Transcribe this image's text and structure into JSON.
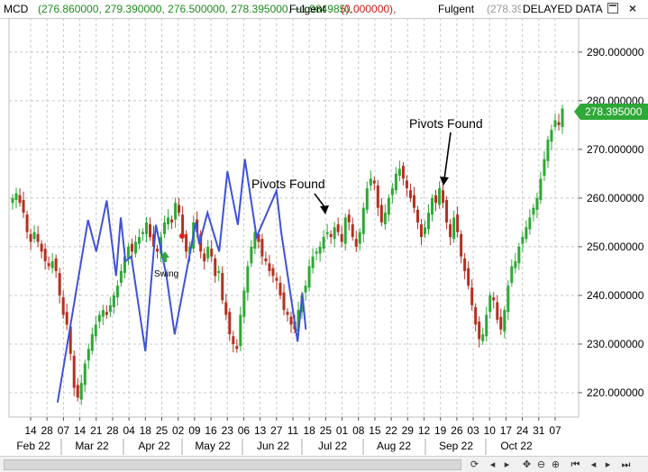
{
  "header": {
    "symbol": "MCD",
    "ohlc": "(276.860000, 279.390000, 276.500000, 278.395000, +1.984985),",
    "indicator1_name": "Fulgent",
    "indicator1_value": "(0.000000),",
    "indicator2_name": "Fulgent",
    "indicator2_value": "(278.39",
    "status": "DELAYED DATA"
  },
  "window_buttons": {
    "maximize_icon": "maximize-icon",
    "close_icon": "close-icon",
    "close_glyph": "×"
  },
  "last_price_label": "278.395000",
  "colors": {
    "up": "#2ea836",
    "down": "#b5301f",
    "zigzag": "#3f52d8",
    "grid": "#c8c8c8",
    "last_price": "#2ea836",
    "swing_arrow": "#2ea836",
    "swing_dot": "#e0201c"
  },
  "chart_data": {
    "type": "candlestick",
    "title": "",
    "y_axis": {
      "side": "right",
      "range": [
        215,
        297
      ],
      "ticks": [
        220,
        230,
        240,
        250,
        260,
        270,
        280,
        290
      ],
      "tick_labels": [
        "220.000000",
        "230.000000",
        "240.000000",
        "250.000000",
        "260.000000",
        "270.000000",
        "280.000000",
        "290.000000"
      ]
    },
    "x_axis": {
      "day_labels": [
        "14",
        "28",
        "07",
        "14",
        "21",
        "28",
        "04",
        "18",
        "25",
        "02",
        "09",
        "16",
        "23",
        "06",
        "13",
        "27",
        "11",
        "18",
        "25",
        "01",
        "08",
        "15",
        "22",
        "29",
        "12",
        "19",
        "26",
        "03",
        "10",
        "17",
        "24",
        "31",
        "07"
      ],
      "month_labels": [
        "Feb 22",
        "Mar 22",
        "Apr 22",
        "May 22",
        "Jun 22",
        "Jul 22",
        "Aug 22",
        "Sep 22",
        "Oct 22"
      ],
      "start_label": "14"
    },
    "daily_closes": [
      260,
      261,
      259,
      257,
      253,
      251,
      253,
      251,
      249,
      247,
      246,
      247,
      245,
      240,
      236,
      234,
      228,
      221,
      219,
      222,
      226,
      229,
      232,
      234,
      236,
      237,
      236,
      238,
      240,
      242,
      245,
      248,
      250,
      249,
      251,
      252,
      253,
      255,
      252,
      250,
      249,
      252,
      255,
      256,
      255,
      259,
      257,
      252,
      249,
      250,
      255,
      253,
      249,
      247,
      250,
      248,
      244,
      245,
      239,
      236,
      232,
      230,
      229,
      236,
      241,
      246,
      250,
      253,
      251,
      248,
      247,
      245,
      244,
      243,
      240,
      237,
      236,
      234,
      233,
      237,
      240,
      242,
      246,
      248,
      249,
      250,
      252,
      253,
      252,
      254,
      253,
      251,
      256,
      255,
      252,
      250,
      253,
      258,
      262,
      264,
      263,
      258,
      255,
      257,
      260,
      262,
      265,
      266,
      264,
      262,
      260,
      258,
      255,
      252,
      254,
      257,
      260,
      259,
      262,
      259,
      255,
      252,
      256,
      253,
      248,
      245,
      242,
      238,
      234,
      231,
      232,
      236,
      240,
      239,
      235,
      233,
      237,
      242,
      246,
      247,
      250,
      252,
      254,
      256,
      258,
      260,
      264,
      268,
      272,
      274,
      276,
      275,
      278.395
    ],
    "zigzag_pivots": [
      {
        "date": "Mar 09",
        "value": 218
      },
      {
        "date": "Apr 04",
        "value": 255.5
      },
      {
        "date": "Apr 11",
        "value": 249
      },
      {
        "date": "Apr 20",
        "value": 259.5
      },
      {
        "date": "Apr 28",
        "value": 244
      },
      {
        "date": "May 02",
        "value": 256
      },
      {
        "date": "May 06",
        "value": 247
      },
      {
        "date": "May 11",
        "value": 248
      },
      {
        "date": "May 23",
        "value": 228.5
      },
      {
        "date": "Jun 01",
        "value": 254.5
      },
      {
        "date": "Jun 10",
        "value": 244
      },
      {
        "date": "Jun 17",
        "value": 232
      },
      {
        "date": "Jul 05",
        "value": 255
      },
      {
        "date": "Jul 08",
        "value": 250.5
      },
      {
        "date": "Jul 15",
        "value": 257
      },
      {
        "date": "Jul 25",
        "value": 249
      },
      {
        "date": "Aug 01",
        "value": 265.5
      },
      {
        "date": "Aug 10",
        "value": 254.5
      },
      {
        "date": "Aug 16",
        "value": 268
      },
      {
        "date": "Aug 26",
        "value": 252
      },
      {
        "date": "Sep 12",
        "value": 261.5
      },
      {
        "date": "Sep 16",
        "value": 253
      },
      {
        "date": "Sep 30",
        "value": 230.5
      },
      {
        "date": "Oct 04",
        "value": 240.5
      },
      {
        "date": "Oct 07",
        "value": 233
      }
    ],
    "annotations": [
      {
        "text": "Pivots Found",
        "points_to": "Jul 15 high"
      },
      {
        "text": "Pivots Found",
        "points_to": "Sep 12 high"
      },
      {
        "text": "Swing",
        "points_to": "Apr 25 low"
      }
    ]
  }
}
